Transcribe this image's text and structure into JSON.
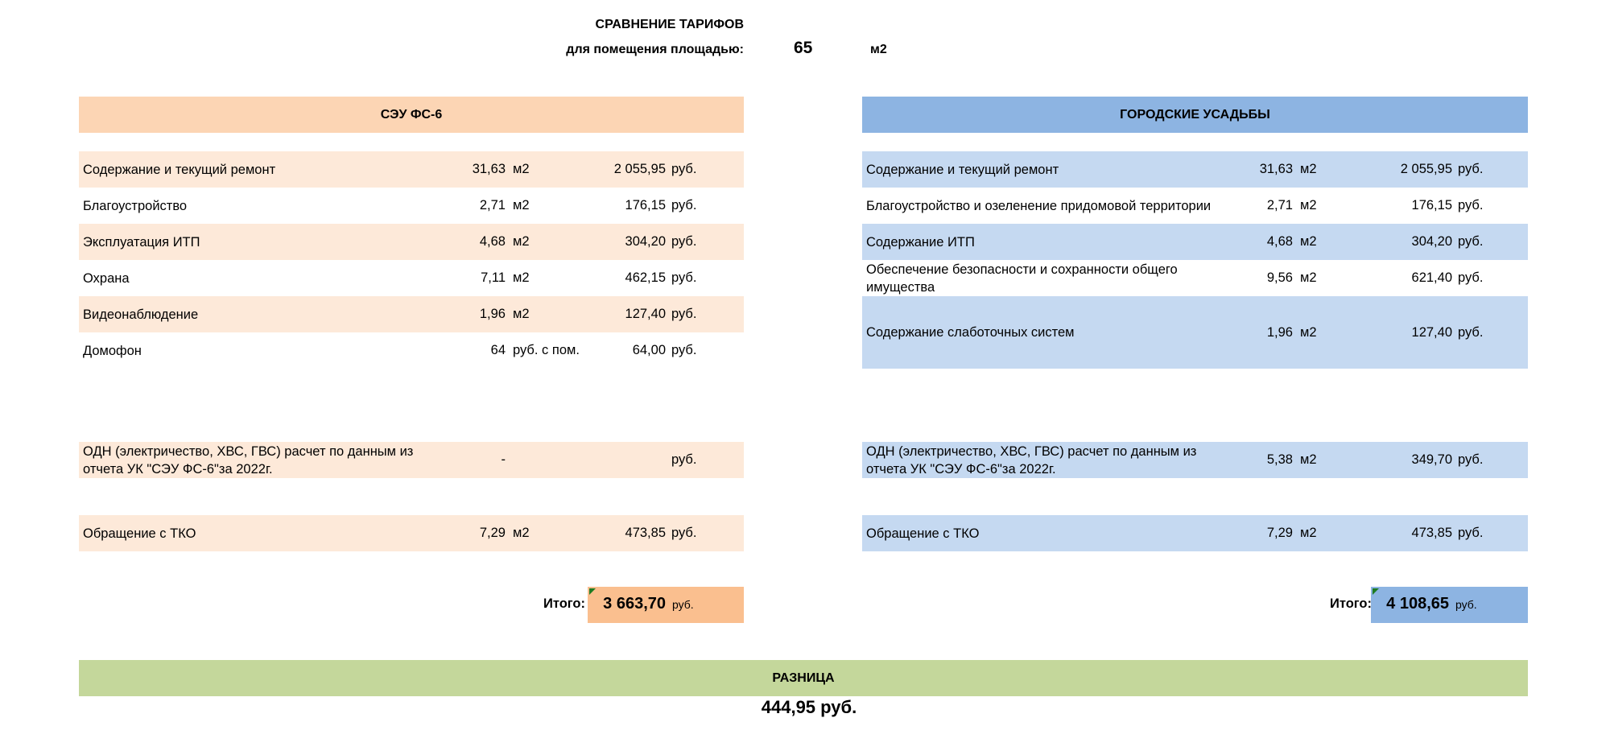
{
  "title": "СРАВНЕНИЕ ТАРИФОВ",
  "area_label": "для помещения площадью:",
  "area_value": "65",
  "area_unit": "м2",
  "left": {
    "header": "СЭУ ФС-6",
    "color_header": "#FCD5B4",
    "color_row": "#FDE9D9",
    "color_total": "#FABF8F",
    "rows": [
      {
        "label": "Содержание и текущий ремонт",
        "rate": "31,63",
        "unit": "м2",
        "sum": "2 055,95",
        "currency": "руб."
      },
      {
        "label": "Благоустройство",
        "rate": "2,71",
        "unit": "м2",
        "sum": "176,15",
        "currency": "руб."
      },
      {
        "label": "Эксплуатация ИТП",
        "rate": "4,68",
        "unit": "м2",
        "sum": "304,20",
        "currency": "руб."
      },
      {
        "label": "Охрана",
        "rate": "7,11",
        "unit": "м2",
        "sum": "462,15",
        "currency": "руб."
      },
      {
        "label": "Видеонаблюдение",
        "rate": "1,96",
        "unit": "м2",
        "sum": "127,40",
        "currency": "руб."
      },
      {
        "label": "Домофон",
        "rate": "64",
        "unit": "руб. с пом.",
        "sum": "64,00",
        "currency": "руб."
      },
      {
        "label": "ОДН (электричество, ХВС, ГВС) расчет по данным из отчета УК \"СЭУ ФС-6\"за 2022г.",
        "rate": "-",
        "unit": "",
        "sum": "",
        "currency": "руб."
      },
      {
        "label": "Обращение с ТКО",
        "rate": "7,29",
        "unit": "м2",
        "sum": "473,85",
        "currency": "руб."
      }
    ],
    "total_label": "Итого:",
    "total_value": "3 663,70",
    "total_currency": "руб."
  },
  "right": {
    "header": "ГОРОДСКИЕ УСАДЬБЫ",
    "color_header": "#8DB4E2",
    "color_row": "#C5D9F1",
    "color_total": "#8DB4E2",
    "rows": [
      {
        "label": "Содержание и текущий ремонт",
        "rate": "31,63",
        "unit": "м2",
        "sum": "2 055,95",
        "currency": "руб."
      },
      {
        "label": "Благоустройство и озеленение придомовой территории",
        "rate": "2,71",
        "unit": "м2",
        "sum": "176,15",
        "currency": "руб."
      },
      {
        "label": "Содержание ИТП",
        "rate": "4,68",
        "unit": "м2",
        "sum": "304,20",
        "currency": "руб."
      },
      {
        "label": "Обеспечение безопасности и сохранности общего имущества",
        "rate": "9,56",
        "unit": "м2",
        "sum": "621,40",
        "currency": "руб."
      },
      {
        "label": "Содержание слаботочных систем",
        "rate": "1,96",
        "unit": "м2",
        "sum": "127,40",
        "currency": "руб."
      },
      {
        "label": "ОДН (электричество, ХВС, ГВС) расчет по данным из отчета УК \"СЭУ ФС-6\"за 2022г.",
        "rate": "5,38",
        "unit": "м2",
        "sum": "349,70",
        "currency": "руб."
      },
      {
        "label": "Обращение с ТКО",
        "rate": "7,29",
        "unit": "м2",
        "sum": "473,85",
        "currency": "руб."
      }
    ],
    "total_label": "Итого:",
    "total_value": "4 108,65",
    "total_currency": "руб."
  },
  "difference": {
    "label": "РАЗНИЦА",
    "value": "444,95 руб.",
    "color": "#C4D79B"
  }
}
